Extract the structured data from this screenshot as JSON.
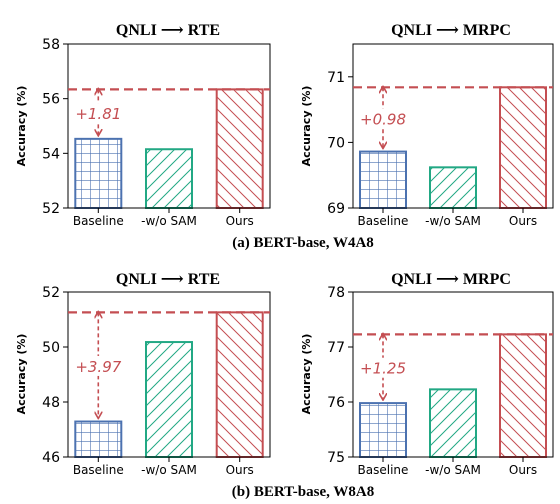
{
  "colors": {
    "baseline": "#4c72b0",
    "wo_sam": "#22a884",
    "ours": "#c44e52",
    "annotation": "#c44e52"
  },
  "captions": [
    "(a) BERT-base, W4A8",
    "(b) BERT-base, W8A8"
  ],
  "chart_data": [
    {
      "type": "bar",
      "title": "QNLI ⟶ RTE",
      "ylabel": "Accuracy (%)",
      "categories": [
        "Baseline",
        "-w/o SAM",
        "Ours"
      ],
      "values": [
        54.53,
        54.15,
        56.34
      ],
      "ylim": [
        52,
        58
      ],
      "yticks": [
        "52",
        "54",
        "56",
        "58"
      ],
      "annotation": "+1.81",
      "grid": false
    },
    {
      "type": "bar",
      "title": "QNLI ⟶ MRPC",
      "ylabel": "Accuracy (%)",
      "categories": [
        "Baseline",
        "-w/o SAM",
        "Ours"
      ],
      "values": [
        69.86,
        69.62,
        70.84
      ],
      "ylim": [
        69,
        71.5
      ],
      "yticks": [
        "69",
        "70",
        "71"
      ],
      "annotation": "+0.98",
      "grid": false
    },
    {
      "type": "bar",
      "title": "QNLI ⟶ RTE",
      "ylabel": "Accuracy (%)",
      "categories": [
        "Baseline",
        "-w/o SAM",
        "Ours"
      ],
      "values": [
        47.29,
        50.18,
        51.26
      ],
      "ylim": [
        46,
        52
      ],
      "yticks": [
        "46",
        "48",
        "50",
        "52"
      ],
      "annotation": "+3.97",
      "grid": false
    },
    {
      "type": "bar",
      "title": "QNLI ⟶ MRPC",
      "ylabel": "Accuracy (%)",
      "categories": [
        "Baseline",
        "-w/o SAM",
        "Ours"
      ],
      "values": [
        75.98,
        76.23,
        77.23
      ],
      "ylim": [
        75,
        78
      ],
      "yticks": [
        "75",
        "76",
        "77",
        "78"
      ],
      "annotation": "+1.25",
      "grid": false
    }
  ]
}
